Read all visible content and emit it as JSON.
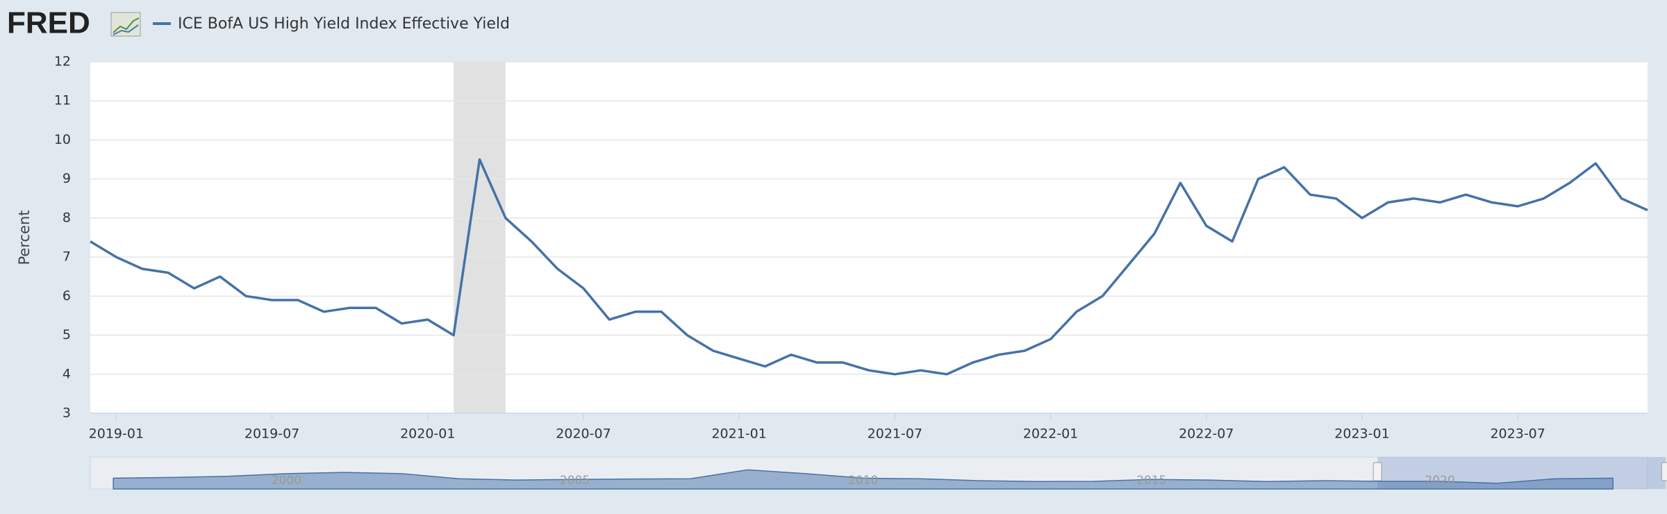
{
  "logo": "FRED",
  "chart_data": {
    "type": "line",
    "y_label": "Percent",
    "x": [
      "2018-12",
      "2019-01",
      "2019-02",
      "2019-03",
      "2019-04",
      "2019-05",
      "2019-06",
      "2019-07",
      "2019-08",
      "2019-09",
      "2019-10",
      "2019-11",
      "2019-12",
      "2020-01",
      "2020-02",
      "2020-03",
      "2020-04",
      "2020-05",
      "2020-06",
      "2020-07",
      "2020-08",
      "2020-09",
      "2020-10",
      "2020-11",
      "2020-12",
      "2021-01",
      "2021-02",
      "2021-03",
      "2021-04",
      "2021-05",
      "2021-06",
      "2021-07",
      "2021-08",
      "2021-09",
      "2021-10",
      "2021-11",
      "2021-12",
      "2022-01",
      "2022-02",
      "2022-03",
      "2022-04",
      "2022-05",
      "2022-06",
      "2022-07",
      "2022-08",
      "2022-09",
      "2022-10",
      "2022-11",
      "2022-12",
      "2023-01",
      "2023-02",
      "2023-03",
      "2023-04",
      "2023-05",
      "2023-06",
      "2023-07",
      "2023-08",
      "2023-09",
      "2023-10",
      "2023-11",
      "2023-12"
    ],
    "series": [
      {
        "name": "ICE BofA US High Yield Index Effective Yield",
        "color": "#4572a7",
        "values": [
          7.4,
          7.0,
          6.7,
          6.6,
          6.2,
          6.5,
          6.0,
          5.9,
          5.9,
          5.6,
          5.7,
          5.7,
          5.3,
          5.4,
          5.0,
          9.5,
          8.0,
          7.4,
          6.7,
          6.2,
          5.4,
          5.6,
          5.6,
          5.0,
          4.6,
          4.4,
          4.2,
          4.5,
          4.3,
          4.3,
          4.1,
          4.0,
          4.1,
          4.0,
          4.3,
          4.5,
          4.6,
          4.9,
          5.6,
          6.0,
          6.8,
          7.6,
          8.9,
          7.8,
          7.4,
          9.0,
          9.3,
          8.6,
          8.5,
          8.0,
          8.4,
          8.5,
          8.4,
          8.6,
          8.4,
          8.3,
          8.5,
          8.9,
          9.4,
          8.5,
          8.2
        ]
      }
    ],
    "xlim": [
      "2018-12",
      "2023-12"
    ],
    "xticks": [
      "2019-01",
      "2019-07",
      "2020-01",
      "2020-07",
      "2021-01",
      "2021-07",
      "2022-01",
      "2022-07",
      "2023-01",
      "2023-07"
    ],
    "ylim": [
      3,
      12
    ],
    "yticks": [
      3,
      4,
      5,
      6,
      7,
      8,
      9,
      10,
      11,
      12
    ],
    "grid": true,
    "recessions": [
      {
        "start": "2020-02",
        "end": "2020-04"
      }
    ],
    "navigator": {
      "x": [
        1997,
        1998,
        1999,
        2000,
        2001,
        2002,
        2003,
        2004,
        2005,
        2006,
        2007,
        2008,
        2009,
        2010,
        2011,
        2012,
        2013,
        2014,
        2015,
        2016,
        2017,
        2018,
        2019,
        2020,
        2021,
        2022,
        2023
      ],
      "values": [
        8.5,
        9,
        10,
        12,
        13,
        12,
        8,
        7,
        7.5,
        7.8,
        8,
        15,
        12,
        8.5,
        8,
        6.5,
        5.8,
        6,
        7.5,
        7,
        5.8,
        6.5,
        6,
        6,
        4.5,
        8,
        8.5
      ],
      "xlim": [
        1996.6,
        2023.6
      ],
      "ylim": [
        0,
        25
      ],
      "xticks": [
        2000,
        2005,
        2010,
        2015,
        2020
      ]
    }
  }
}
